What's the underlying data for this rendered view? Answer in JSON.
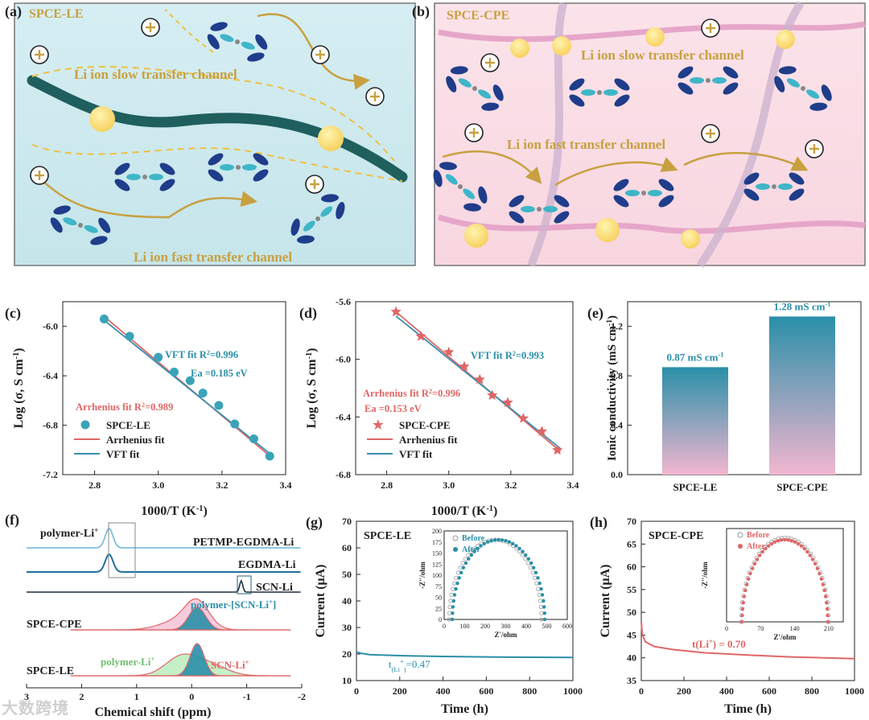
{
  "panel_a": {
    "letter": "(a)",
    "title": "SPCE-LE",
    "slow_label": "Li ion slow transfer channel",
    "fast_label": "Li ion fast transfer channel"
  },
  "panel_b": {
    "letter": "(b)",
    "title": "SPCE-CPE",
    "slow_label": "Li ion slow transfer channel",
    "fast_label": "Li ion fast transfer channel"
  },
  "plus_symbol": "+",
  "colors": {
    "teal": "#2a8fa8",
    "red": "#e06666",
    "gold": "#c8a040",
    "dark": "#1f1f1f"
  },
  "chart_data": [
    {
      "panel": "(c)",
      "type": "scatter",
      "xlabel": "1000/T (K",
      "xlabel_sup": "-1",
      "xlabel_tail": ")",
      "ylabel": "Log (σ, S cm",
      "ylabel_sup": "-1",
      "ylabel_tail": ")",
      "xlim": [
        2.7,
        3.4
      ],
      "ylim": [
        -7.2,
        -5.8
      ],
      "xticks": [
        "2.8",
        "3.0",
        "3.2",
        "3.4"
      ],
      "yticks": [
        "-6.0",
        "-6.4",
        "-6.8",
        "-7.2"
      ],
      "series": [
        {
          "name": "SPCE-LE",
          "x": [
            2.83,
            2.91,
            3.0,
            3.05,
            3.1,
            3.14,
            3.19,
            3.24,
            3.3,
            3.35
          ],
          "y": [
            -5.94,
            -6.08,
            -6.25,
            -6.37,
            -6.44,
            -6.54,
            -6.64,
            -6.79,
            -6.91,
            -7.05
          ]
        },
        {
          "name": "Arrhenius fit",
          "x": [
            2.83,
            3.36
          ],
          "y": [
            -5.92,
            -7.07
          ]
        },
        {
          "name": "VFT fit",
          "x": [
            2.83,
            3.36
          ],
          "y": [
            -5.95,
            -7.05
          ]
        }
      ],
      "annotations": {
        "vft_fit": "VFT fit R",
        "vft_value": "=0.996",
        "ea": "Ea =0.185 eV",
        "arrhenius_fit": "Arrhenius fit R",
        "arrhenius_value": "=0.989",
        "sup2": "2"
      }
    },
    {
      "panel": "(d)",
      "type": "scatter",
      "xlabel": "1000/T (K",
      "xlabel_sup": "-1",
      "xlabel_tail": ")",
      "ylabel": "Log (σ, S cm",
      "ylabel_sup": "-1",
      "ylabel_tail": ")",
      "xlim": [
        2.7,
        3.4
      ],
      "ylim": [
        -6.8,
        -5.6
      ],
      "xticks": [
        "2.8",
        "3.0",
        "3.2",
        "3.4"
      ],
      "yticks": [
        "-5.6",
        "-6.0",
        "-6.4",
        "-6.8"
      ],
      "series": [
        {
          "name": "SPCE-CPE",
          "x": [
            2.83,
            2.91,
            3.0,
            3.05,
            3.1,
            3.14,
            3.19,
            3.24,
            3.3,
            3.35
          ],
          "y": [
            -5.67,
            -5.84,
            -5.95,
            -6.05,
            -6.14,
            -6.25,
            -6.3,
            -6.41,
            -6.5,
            -6.63
          ]
        },
        {
          "name": "Arrhenius fit",
          "x": [
            2.83,
            3.36
          ],
          "y": [
            -5.67,
            -6.64
          ]
        },
        {
          "name": "VFT fit",
          "x": [
            2.83,
            3.36
          ],
          "y": [
            -5.7,
            -6.62
          ]
        }
      ],
      "annotations": {
        "vft_fit": "VFT fit R",
        "vft_value": "=0.993",
        "arrhenius_fit": "Arrhenius fit R",
        "arrhenius_value": "=0.996",
        "ea": "Ea =0.153 eV",
        "sup2": "2"
      }
    },
    {
      "panel": "(e)",
      "type": "bar",
      "ylabel": "Ionic conductivity (mS cm",
      "ylabel_sup": "-1",
      "ylabel_tail": ")",
      "ylim": [
        0.0,
        1.4
      ],
      "yticks": [
        "0.0",
        "0.4",
        "0.8",
        "1.2"
      ],
      "categories": [
        "SPCE-LE",
        "SPCE-CPE"
      ],
      "values": [
        0.87,
        1.28
      ],
      "value_labels": [
        "0.87 mS cm",
        "1.28 mS cm"
      ],
      "value_sup": "-1"
    },
    {
      "panel": "(f)",
      "type": "line",
      "xlabel": "Chemical shift (ppm)",
      "xticks": [
        "3",
        "2",
        "1",
        "0",
        "-1",
        "-2"
      ],
      "labels": {
        "polymer_li": "polymer-Li",
        "plus": "+",
        "petmp": "PETMP-EGDMA-Li",
        "egdma": "EGDMA-Li",
        "scn": "SCN-Li",
        "cpe": "SPCE-CPE",
        "poly_scn": "polymer-[SCN-Li",
        "poly_scn_tail": "]",
        "le_poly": "polymer-Li",
        "le_scn": "SCN-Li",
        "le": "SPCE-LE"
      }
    },
    {
      "panel": "(g)",
      "type": "line",
      "title": "SPCE-LE",
      "xlabel": "Time (h)",
      "ylabel": "Current (μA)",
      "xlim": [
        0,
        1000
      ],
      "ylim": [
        10,
        70
      ],
      "xticks": [
        "0",
        "200",
        "400",
        "600",
        "800",
        "1000"
      ],
      "yticks": [
        "10",
        "20",
        "30",
        "40",
        "50",
        "60",
        "70"
      ],
      "series": [
        {
          "name": "current",
          "x": [
            0,
            20,
            60,
            200,
            400,
            600,
            800,
            1000
          ],
          "y": [
            20.8,
            20.3,
            19.8,
            19.4,
            19.1,
            18.9,
            18.8,
            18.7
          ]
        }
      ],
      "transference": "t",
      "transference_sub": "(Li",
      "transference_sup": "+",
      "transference_tail": ")",
      "transference_value": "=0.47",
      "inset": {
        "xlabel": "Z'/ohm",
        "ylabel": "-Z''/ohm",
        "xticks": [
          "0",
          "100",
          "200",
          "300",
          "400",
          "500",
          "600"
        ],
        "yticks": [
          "0",
          "25",
          "50",
          "75",
          "100",
          "125",
          "150",
          "175",
          "200"
        ],
        "xlim": [
          0,
          600
        ],
        "ylim": [
          0,
          200
        ],
        "legend": [
          "Before",
          "After"
        ],
        "before": {
          "center": 250,
          "radius": 225
        },
        "after": {
          "center": 265,
          "radius": 225
        }
      }
    },
    {
      "panel": "(h)",
      "type": "line",
      "title": "SPCE-CPE",
      "xlabel": "Time (h)",
      "ylabel": "Current (μA)",
      "xlim": [
        0,
        1000
      ],
      "ylim": [
        35,
        70
      ],
      "xticks": [
        "0",
        "200",
        "400",
        "600",
        "800",
        "1000"
      ],
      "yticks": [
        "35",
        "40",
        "45",
        "50",
        "55",
        "60",
        "65",
        "70"
      ],
      "series": [
        {
          "name": "current",
          "x": [
            0,
            5,
            20,
            60,
            150,
            300,
            500,
            700,
            1000
          ],
          "y": [
            48,
            45,
            43.5,
            42.5,
            41.8,
            41.1,
            40.6,
            40.2,
            39.8
          ]
        }
      ],
      "transference": "t(Li",
      "transference_sup": "+",
      "transference_tail": ") = 0.70",
      "inset": {
        "xlabel": "Z'/ohm",
        "ylabel": "-Z''/ohm",
        "xticks": [
          "0",
          "70",
          "140",
          "210"
        ],
        "xlim": [
          0,
          240
        ],
        "ylim": [
          0,
          80
        ],
        "legend": [
          "Before",
          "After"
        ],
        "before": {
          "center": 120,
          "radius": 90
        },
        "after": {
          "center": 120,
          "radius": 88
        }
      }
    }
  ],
  "watermark": "大数跨境"
}
